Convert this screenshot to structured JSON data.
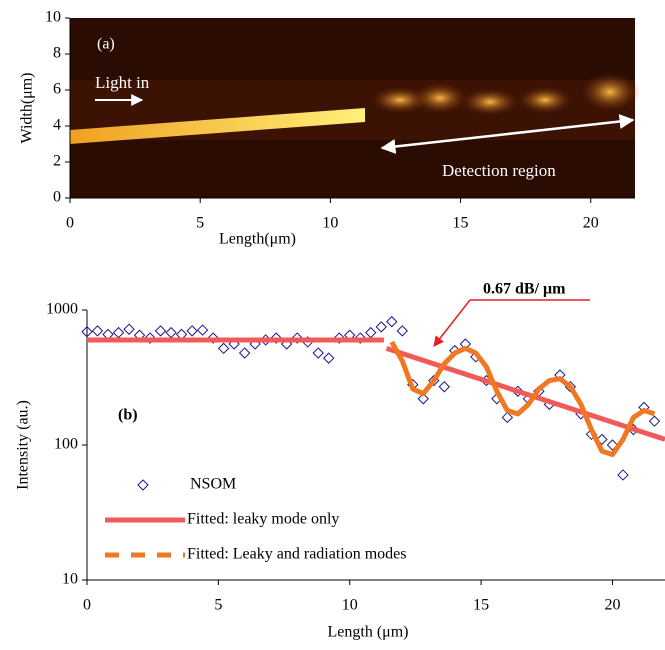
{
  "chart_data": [
    {
      "type": "image",
      "xlabel": "Length(μm)",
      "ylabel": "Width(μm)",
      "xlim": [
        0,
        21.7
      ],
      "ylim": [
        0,
        10
      ],
      "xticks": [
        0,
        5,
        10,
        15,
        20
      ],
      "yticks": [
        0,
        2,
        4,
        6,
        8,
        10
      ],
      "annotations": [
        "(a)",
        "Light in",
        "Detection region"
      ]
    },
    {
      "type": "line",
      "xlabel": "Length (μm)",
      "ylabel": "Intensity (au.)",
      "xlim": [
        0,
        22
      ],
      "ylim": [
        10,
        1000
      ],
      "log_y": true,
      "xticks": [
        0,
        5,
        10,
        15,
        20
      ],
      "yticks": [
        10,
        100,
        1000
      ],
      "legend": "lower left",
      "annotations": [
        "(b)",
        "0.67 dB/ μm"
      ],
      "series": [
        {
          "name": "NSOM",
          "color": "#1a1a8c",
          "marker": "diamond",
          "x": [
            0,
            0.4,
            0.8,
            1.2,
            1.6,
            2.0,
            2.4,
            2.8,
            3.2,
            3.6,
            4.0,
            4.4,
            4.8,
            5.2,
            5.6,
            6.0,
            6.4,
            6.8,
            7.2,
            7.6,
            8.0,
            8.4,
            8.8,
            9.2,
            9.6,
            10.0,
            10.4,
            10.8,
            11.2,
            11.6,
            12.0,
            12.4,
            12.8,
            13.2,
            13.6,
            14.0,
            14.4,
            14.8,
            15.2,
            15.6,
            16.0,
            16.4,
            16.8,
            17.2,
            17.6,
            18.0,
            18.4,
            18.8,
            19.2,
            19.6,
            20.0,
            20.4,
            20.8,
            21.2,
            21.6
          ],
          "values": [
            690,
            700,
            660,
            680,
            720,
            650,
            620,
            700,
            680,
            660,
            700,
            710,
            620,
            520,
            560,
            480,
            560,
            600,
            620,
            560,
            620,
            580,
            480,
            440,
            620,
            650,
            620,
            680,
            750,
            820,
            700,
            280,
            220,
            300,
            270,
            500,
            560,
            450,
            300,
            220,
            160,
            250,
            220,
            250,
            200,
            330,
            270,
            170,
            120,
            110,
            100,
            60,
            130,
            190,
            150
          ]
        },
        {
          "name": "Fitted: leaky mode only",
          "color": "#f25a5a",
          "x": [
            0,
            11.3,
            11.4,
            11.4,
            22
          ],
          "values": [
            600,
            600,
            null,
            520,
            110
          ]
        },
        {
          "name": "Fitted: Leaky and radiation modes",
          "color": "#f07820",
          "dashed_legend": true,
          "x": [
            11.6,
            12.0,
            12.4,
            12.8,
            13.2,
            13.6,
            14.0,
            14.4,
            14.8,
            15.2,
            15.6,
            16.0,
            16.4,
            16.8,
            17.2,
            17.6,
            18.0,
            18.4,
            18.8,
            19.2,
            19.6,
            20.0,
            20.4,
            20.8,
            21.2,
            21.6
          ],
          "values": [
            580,
            420,
            260,
            240,
            300,
            400,
            480,
            520,
            480,
            380,
            250,
            180,
            170,
            200,
            260,
            300,
            310,
            270,
            200,
            130,
            90,
            85,
            110,
            160,
            180,
            170
          ]
        }
      ]
    }
  ]
}
